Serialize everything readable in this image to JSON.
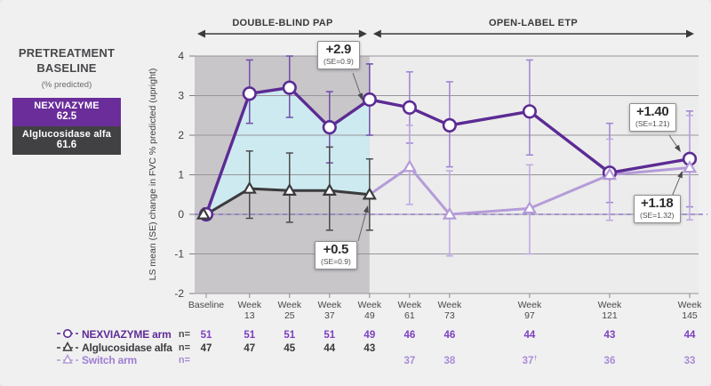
{
  "pretreatment": {
    "title_line1": "PRETREATMENT",
    "title_line2": "BASELINE",
    "subtitle": "(% predicted)",
    "boxes": [
      {
        "label": "NEXVIAZYME",
        "value": "62.5",
        "bg": "#6a2d9a"
      },
      {
        "label": "Alglucosidase alfa",
        "value": "61.6",
        "bg": "#414043"
      }
    ]
  },
  "phases": [
    {
      "label": "DOUBLE-BLIND PAP"
    },
    {
      "label": "OPEN-LABEL ETP"
    }
  ],
  "chart_data": {
    "type": "line",
    "ylabel": "LS mean (SE) change in FVC % predicted (upright)",
    "ylim": [
      -2,
      4
    ],
    "yticks": [
      4,
      3,
      2,
      1,
      0,
      -1,
      -2
    ],
    "zero_line": {
      "dashed": true,
      "color": "#7a5fc0"
    },
    "double_blind_region": {
      "from_week": 0,
      "to_week": 49,
      "bg": "#c8c6c9"
    },
    "shaded_area_color": "#cdeaf0",
    "x_axis": [
      {
        "week": 0,
        "line1": "Baseline",
        "line2": ""
      },
      {
        "week": 13,
        "line1": "Week",
        "line2": "13"
      },
      {
        "week": 25,
        "line1": "Week",
        "line2": "25"
      },
      {
        "week": 37,
        "line1": "Week",
        "line2": "37"
      },
      {
        "week": 49,
        "line1": "Week",
        "line2": "49"
      },
      {
        "week": 61,
        "line1": "Week",
        "line2": "61"
      },
      {
        "week": 73,
        "line1": "Week",
        "line2": "73"
      },
      {
        "week": 97,
        "line1": "Week",
        "line2": "97"
      },
      {
        "week": 121,
        "line1": "Week",
        "line2": "121"
      },
      {
        "week": 145,
        "line1": "Week",
        "line2": "145"
      }
    ],
    "series": [
      {
        "name": "NEXVIAZYME arm",
        "marker": "circle",
        "color": "#5c2b94",
        "errbar_color_early": "#6f4cab",
        "errbar_color_late": "#9e82d4",
        "points": [
          {
            "week": 0,
            "value": 0.0
          },
          {
            "week": 13,
            "value": 3.05,
            "lo": 2.3,
            "hi": 3.9
          },
          {
            "week": 25,
            "value": 3.2,
            "lo": 2.45,
            "hi": 4.0
          },
          {
            "week": 37,
            "value": 2.2,
            "lo": 1.3,
            "hi": 3.1
          },
          {
            "week": 49,
            "value": 2.9,
            "lo": 2.0,
            "hi": 3.8
          },
          {
            "week": 61,
            "value": 2.7,
            "lo": 1.8,
            "hi": 3.6
          },
          {
            "week": 73,
            "value": 2.25,
            "lo": 1.2,
            "hi": 3.35
          },
          {
            "week": 97,
            "value": 2.6,
            "lo": 1.5,
            "hi": 3.9
          },
          {
            "week": 121,
            "value": 1.05,
            "lo": 0.3,
            "hi": 2.3
          },
          {
            "week": 145,
            "value": 1.4,
            "lo": 0.19,
            "hi": 2.61
          }
        ]
      },
      {
        "name": "Alglucosidase alfa",
        "marker": "triangle",
        "color": "#3b3b3d",
        "errbar_color": "#4b494c",
        "points": [
          {
            "week": 0,
            "value": 0.0
          },
          {
            "week": 13,
            "value": 0.65,
            "lo": -0.1,
            "hi": 1.6
          },
          {
            "week": 25,
            "value": 0.6,
            "lo": -0.2,
            "hi": 1.55
          },
          {
            "week": 37,
            "value": 0.6,
            "lo": -0.4,
            "hi": 1.7
          },
          {
            "week": 49,
            "value": 0.5,
            "lo": -0.4,
            "hi": 1.4
          }
        ]
      },
      {
        "name": "Switch arm",
        "marker": "triangle",
        "color": "#b49bd8",
        "errbar_color": "#bda7e2",
        "points": [
          {
            "week": 49,
            "value": 0.5,
            "marker": false
          },
          {
            "week": 61,
            "value": 1.2,
            "lo": 0.25,
            "hi": 2.25
          },
          {
            "week": 73,
            "value": 0.0,
            "lo": -1.05,
            "hi": 1.1
          },
          {
            "week": 97,
            "value": 0.15,
            "lo": -1.0,
            "hi": 1.25
          },
          {
            "week": 121,
            "value": 1.0,
            "lo": -0.15,
            "hi": 1.9
          },
          {
            "week": 145,
            "value": 1.18,
            "lo": -0.14,
            "hi": 2.5
          }
        ]
      }
    ],
    "annotations": [
      {
        "value": "+2.9",
        "se": "(SE=0.9)",
        "series": "NEXVIAZYME arm",
        "week": 49
      },
      {
        "value": "+0.5",
        "se": "(SE=0.9)",
        "series": "Alglucosidase alfa",
        "week": 49
      },
      {
        "value": "+1.40",
        "se": "(SE=1.21)",
        "series": "NEXVIAZYME arm",
        "week": 145
      },
      {
        "value": "+1.18",
        "se": "(SE=1.32)",
        "series": "Switch arm",
        "week": 145
      }
    ]
  },
  "table": {
    "rows": [
      {
        "legend": "NEXVIAZYME arm",
        "n_label": "n=",
        "color": "#5e2c95",
        "n_color": "#4b4b4d",
        "value_color": "#7b3fc0",
        "values": [
          "51",
          "51",
          "51",
          "51",
          "49",
          "46",
          "46",
          "44",
          "43",
          "44"
        ]
      },
      {
        "legend": "Alglucosidase alfa",
        "n_label": "n=",
        "color": "#3b3a3d",
        "n_color": "#4b4b4d",
        "value_color": "#39383b",
        "values": [
          "47",
          "47",
          "45",
          "44",
          "43",
          "",
          "",
          "",
          "",
          ""
        ]
      },
      {
        "legend": "Switch arm",
        "n_label": "n=",
        "color": "#9d7fd2",
        "n_color": "#a78bd6",
        "value_color": "#a78bd6",
        "values": [
          "",
          "",
          "",
          "",
          "",
          "37",
          "38",
          "37†",
          "36",
          "33"
        ]
      }
    ]
  }
}
